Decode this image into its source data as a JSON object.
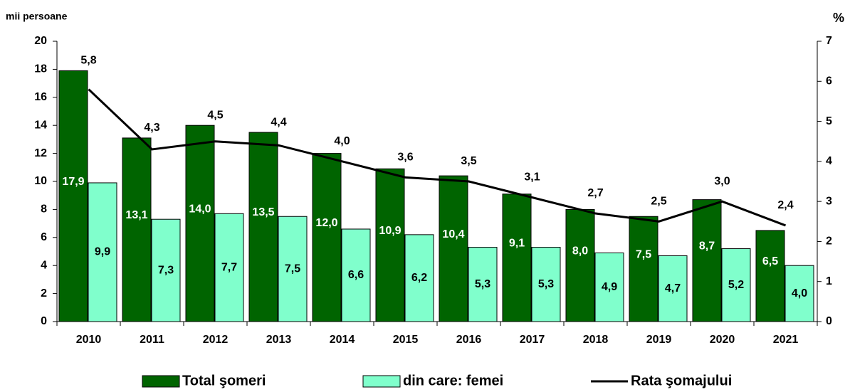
{
  "chart_data": {
    "type": "bar",
    "y_axis_label": "mii persoane",
    "y2_axis_label": "%",
    "categories": [
      "2010",
      "2011",
      "2012",
      "2013",
      "2014",
      "2015",
      "2016",
      "2017",
      "2018",
      "2019",
      "2020",
      "2021"
    ],
    "series": [
      {
        "name": "Total şomeri",
        "type": "bar",
        "color": "#006400",
        "label_color": "#ffffff",
        "values": [
          17.9,
          13.1,
          14.0,
          13.5,
          12.0,
          10.9,
          10.4,
          9.1,
          8.0,
          7.5,
          8.7,
          6.5
        ],
        "value_labels": [
          "17,9",
          "13,1",
          "14,0",
          "13,5",
          "12,0",
          "10,9",
          "10,4",
          "9,1",
          "8,0",
          "7,5",
          "8,7",
          "6,5"
        ]
      },
      {
        "name": "din care: femei",
        "type": "bar",
        "color": "#80ffcc",
        "label_color": "#000000",
        "values": [
          9.9,
          7.3,
          7.7,
          7.5,
          6.6,
          6.2,
          5.3,
          5.3,
          4.9,
          4.7,
          5.2,
          4.0
        ],
        "value_labels": [
          "9,9",
          "7,3",
          "7,7",
          "7,5",
          "6,6",
          "6,2",
          "5,3",
          "5,3",
          "4,9",
          "4,7",
          "5,2",
          "4,0"
        ]
      },
      {
        "name": "Rata şomajului",
        "type": "line",
        "axis": "y2",
        "color": "#000000",
        "label_color": "#000000",
        "values": [
          5.8,
          4.3,
          4.5,
          4.4,
          4.0,
          3.6,
          3.5,
          3.1,
          2.7,
          2.5,
          3.0,
          2.4
        ],
        "value_labels": [
          "5,8",
          "4,3",
          "4,5",
          "4,4",
          "4,0",
          "3,6",
          "3,5",
          "3,1",
          "2,7",
          "2,5",
          "3,0",
          "2,4"
        ]
      }
    ],
    "ylim": [
      0,
      20
    ],
    "yticks": [
      0,
      2,
      4,
      6,
      8,
      10,
      12,
      14,
      16,
      18,
      20
    ],
    "y2lim": [
      0,
      7
    ],
    "y2ticks": [
      0,
      1,
      2,
      3,
      4,
      5,
      6,
      7
    ],
    "legend": "bottom"
  }
}
